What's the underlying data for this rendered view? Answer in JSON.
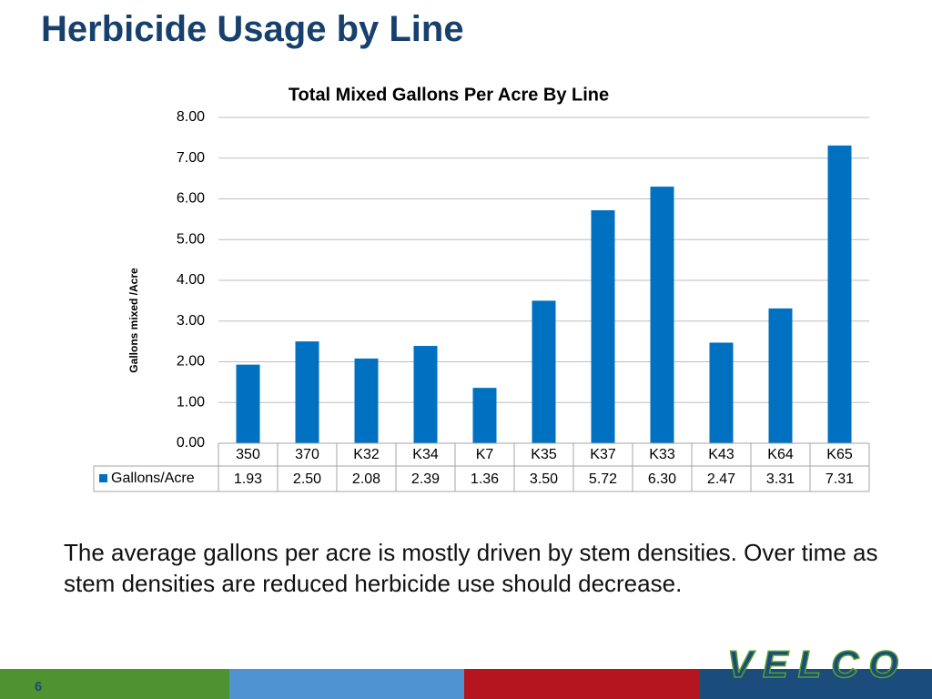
{
  "title": "Herbicide Usage by Line",
  "chart_data": {
    "type": "bar",
    "title": "Total Mixed Gallons Per Acre By Line",
    "y_label": "Gallons mixed /Acre",
    "categories": [
      "350",
      "370",
      "K32",
      "K34",
      "K7",
      "K35",
      "K37",
      "K33",
      "K43",
      "K64",
      "K65"
    ],
    "series": [
      {
        "name": "Gallons/Acre",
        "color": "#0070c0",
        "values": [
          1.93,
          2.5,
          2.08,
          2.39,
          1.36,
          3.5,
          5.72,
          6.3,
          2.47,
          3.31,
          7.31
        ],
        "value_labels": [
          "1.93",
          "2.50",
          "2.08",
          "2.39",
          "1.36",
          "3.50",
          "5.72",
          "6.30",
          "2.47",
          "3.31",
          "7.31"
        ]
      }
    ],
    "ylim": [
      0,
      8
    ],
    "yticks": [
      {
        "value": 0,
        "label": "0.00"
      },
      {
        "value": 1,
        "label": "1.00"
      },
      {
        "value": 2,
        "label": "2.00"
      },
      {
        "value": 3,
        "label": "3.00"
      },
      {
        "value": 4,
        "label": "4.00"
      },
      {
        "value": 5,
        "label": "5.00"
      },
      {
        "value": 6,
        "label": "6.00"
      },
      {
        "value": 7,
        "label": "7.00"
      },
      {
        "value": 8,
        "label": "8.00"
      }
    ],
    "grid": true,
    "data_table": true
  },
  "body": "The average gallons per acre is mostly driven by stem densities. Over time as stem densities are reduced herbicide use should decrease.",
  "page_number": "6",
  "logo": "VELCO"
}
